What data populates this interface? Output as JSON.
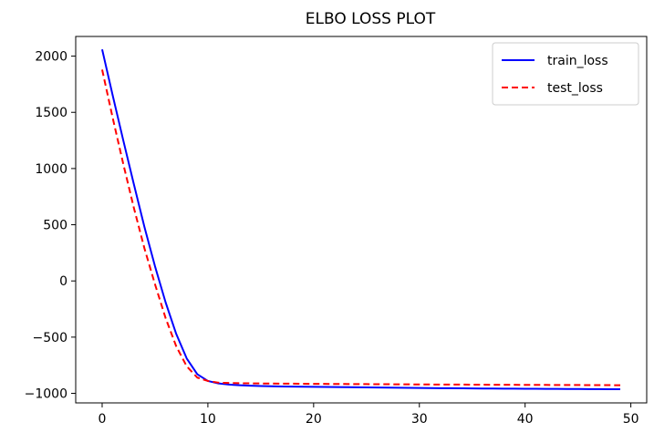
{
  "chart_data": {
    "type": "line",
    "title": "ELBO LOSS PLOT",
    "xlabel": "",
    "ylabel": "",
    "xlim": [
      -2.5,
      51.5
    ],
    "ylim": [
      -1085,
      2175
    ],
    "xticks": [
      0,
      10,
      20,
      30,
      40,
      50
    ],
    "yticks": [
      -1000,
      -500,
      0,
      500,
      1000,
      1500,
      2000
    ],
    "ytick_labels": [
      "−1000",
      "−500",
      "0",
      "500",
      "1000",
      "1500",
      "2000"
    ],
    "grid": false,
    "legend": "top-right",
    "series": [
      {
        "name": "train_loss",
        "color": "#0000ff",
        "style": "solid",
        "x": [
          0,
          1,
          2,
          3,
          4,
          5,
          6,
          7,
          8,
          9,
          10,
          11,
          12,
          13,
          14,
          15,
          16,
          17,
          18,
          19,
          20,
          21,
          22,
          23,
          24,
          25,
          26,
          27,
          28,
          29,
          30,
          31,
          32,
          33,
          34,
          35,
          36,
          37,
          38,
          39,
          40,
          41,
          42,
          43,
          44,
          45,
          46,
          47,
          48,
          49
        ],
        "values": [
          2060,
          1650,
          1250,
          860,
          480,
          130,
          -190,
          -470,
          -690,
          -830,
          -890,
          -912,
          -922,
          -928,
          -932,
          -935,
          -937,
          -939,
          -940,
          -941,
          -942,
          -943,
          -944,
          -945,
          -946,
          -947,
          -948,
          -949,
          -950,
          -951,
          -952,
          -953,
          -954,
          -954,
          -955,
          -956,
          -957,
          -957,
          -958,
          -958,
          -959,
          -959,
          -960,
          -960,
          -961,
          -961,
          -962,
          -962,
          -963,
          -963
        ]
      },
      {
        "name": "test_loss",
        "color": "#ff0000",
        "style": "dashed",
        "x": [
          0,
          1,
          2,
          3,
          4,
          5,
          6,
          7,
          8,
          9,
          10,
          11,
          12,
          13,
          14,
          15,
          16,
          17,
          18,
          19,
          20,
          21,
          22,
          23,
          24,
          25,
          26,
          27,
          28,
          29,
          30,
          31,
          32,
          33,
          34,
          35,
          36,
          37,
          38,
          39,
          40,
          41,
          42,
          43,
          44,
          45,
          46,
          47,
          48,
          49
        ],
        "values": [
          1880,
          1450,
          1040,
          650,
          290,
          -30,
          -330,
          -580,
          -760,
          -860,
          -890,
          -905,
          -908,
          -910,
          -911,
          -912,
          -913,
          -914,
          -914,
          -915,
          -916,
          -916,
          -917,
          -917,
          -918,
          -918,
          -919,
          -919,
          -920,
          -920,
          -921,
          -921,
          -922,
          -922,
          -922,
          -923,
          -923,
          -924,
          -924,
          -924,
          -925,
          -925,
          -925,
          -926,
          -926,
          -926,
          -927,
          -927,
          -927,
          -928
        ]
      }
    ]
  }
}
